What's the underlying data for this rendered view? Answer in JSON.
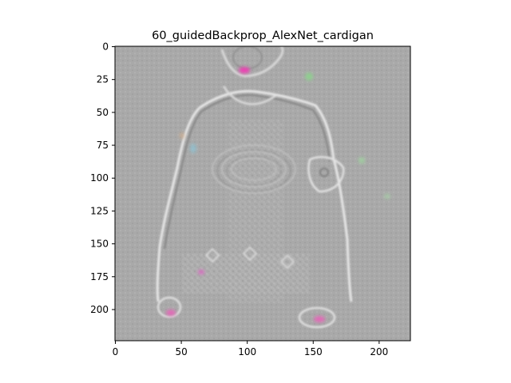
{
  "chart_data": {
    "type": "heatmap",
    "title": "60_guidedBackprop_AlexNet_cardigan",
    "xlabel": "",
    "ylabel": "",
    "xlim": [
      0,
      224
    ],
    "ylim": [
      224,
      0
    ],
    "x_ticks": [
      0,
      50,
      100,
      150,
      200
    ],
    "y_ticks": [
      0,
      25,
      50,
      75,
      100,
      125,
      150,
      175,
      200
    ],
    "grid": false,
    "legend": "none",
    "colors": {
      "background": "#a8a8a8",
      "edge_light": "#e6e6e6",
      "edge_dark": "#7a7a7a",
      "highlight_magenta": "#ee3fb4",
      "highlight_green": "#8fcf8f"
    },
    "image_description_elements": [
      {
        "name": "head",
        "x": 100,
        "y": 8
      },
      {
        "name": "left-hand",
        "x": 42,
        "y": 200
      },
      {
        "name": "right-hand",
        "x": 153,
        "y": 206
      },
      {
        "name": "right-cuff",
        "x": 165,
        "y": 100
      }
    ]
  }
}
